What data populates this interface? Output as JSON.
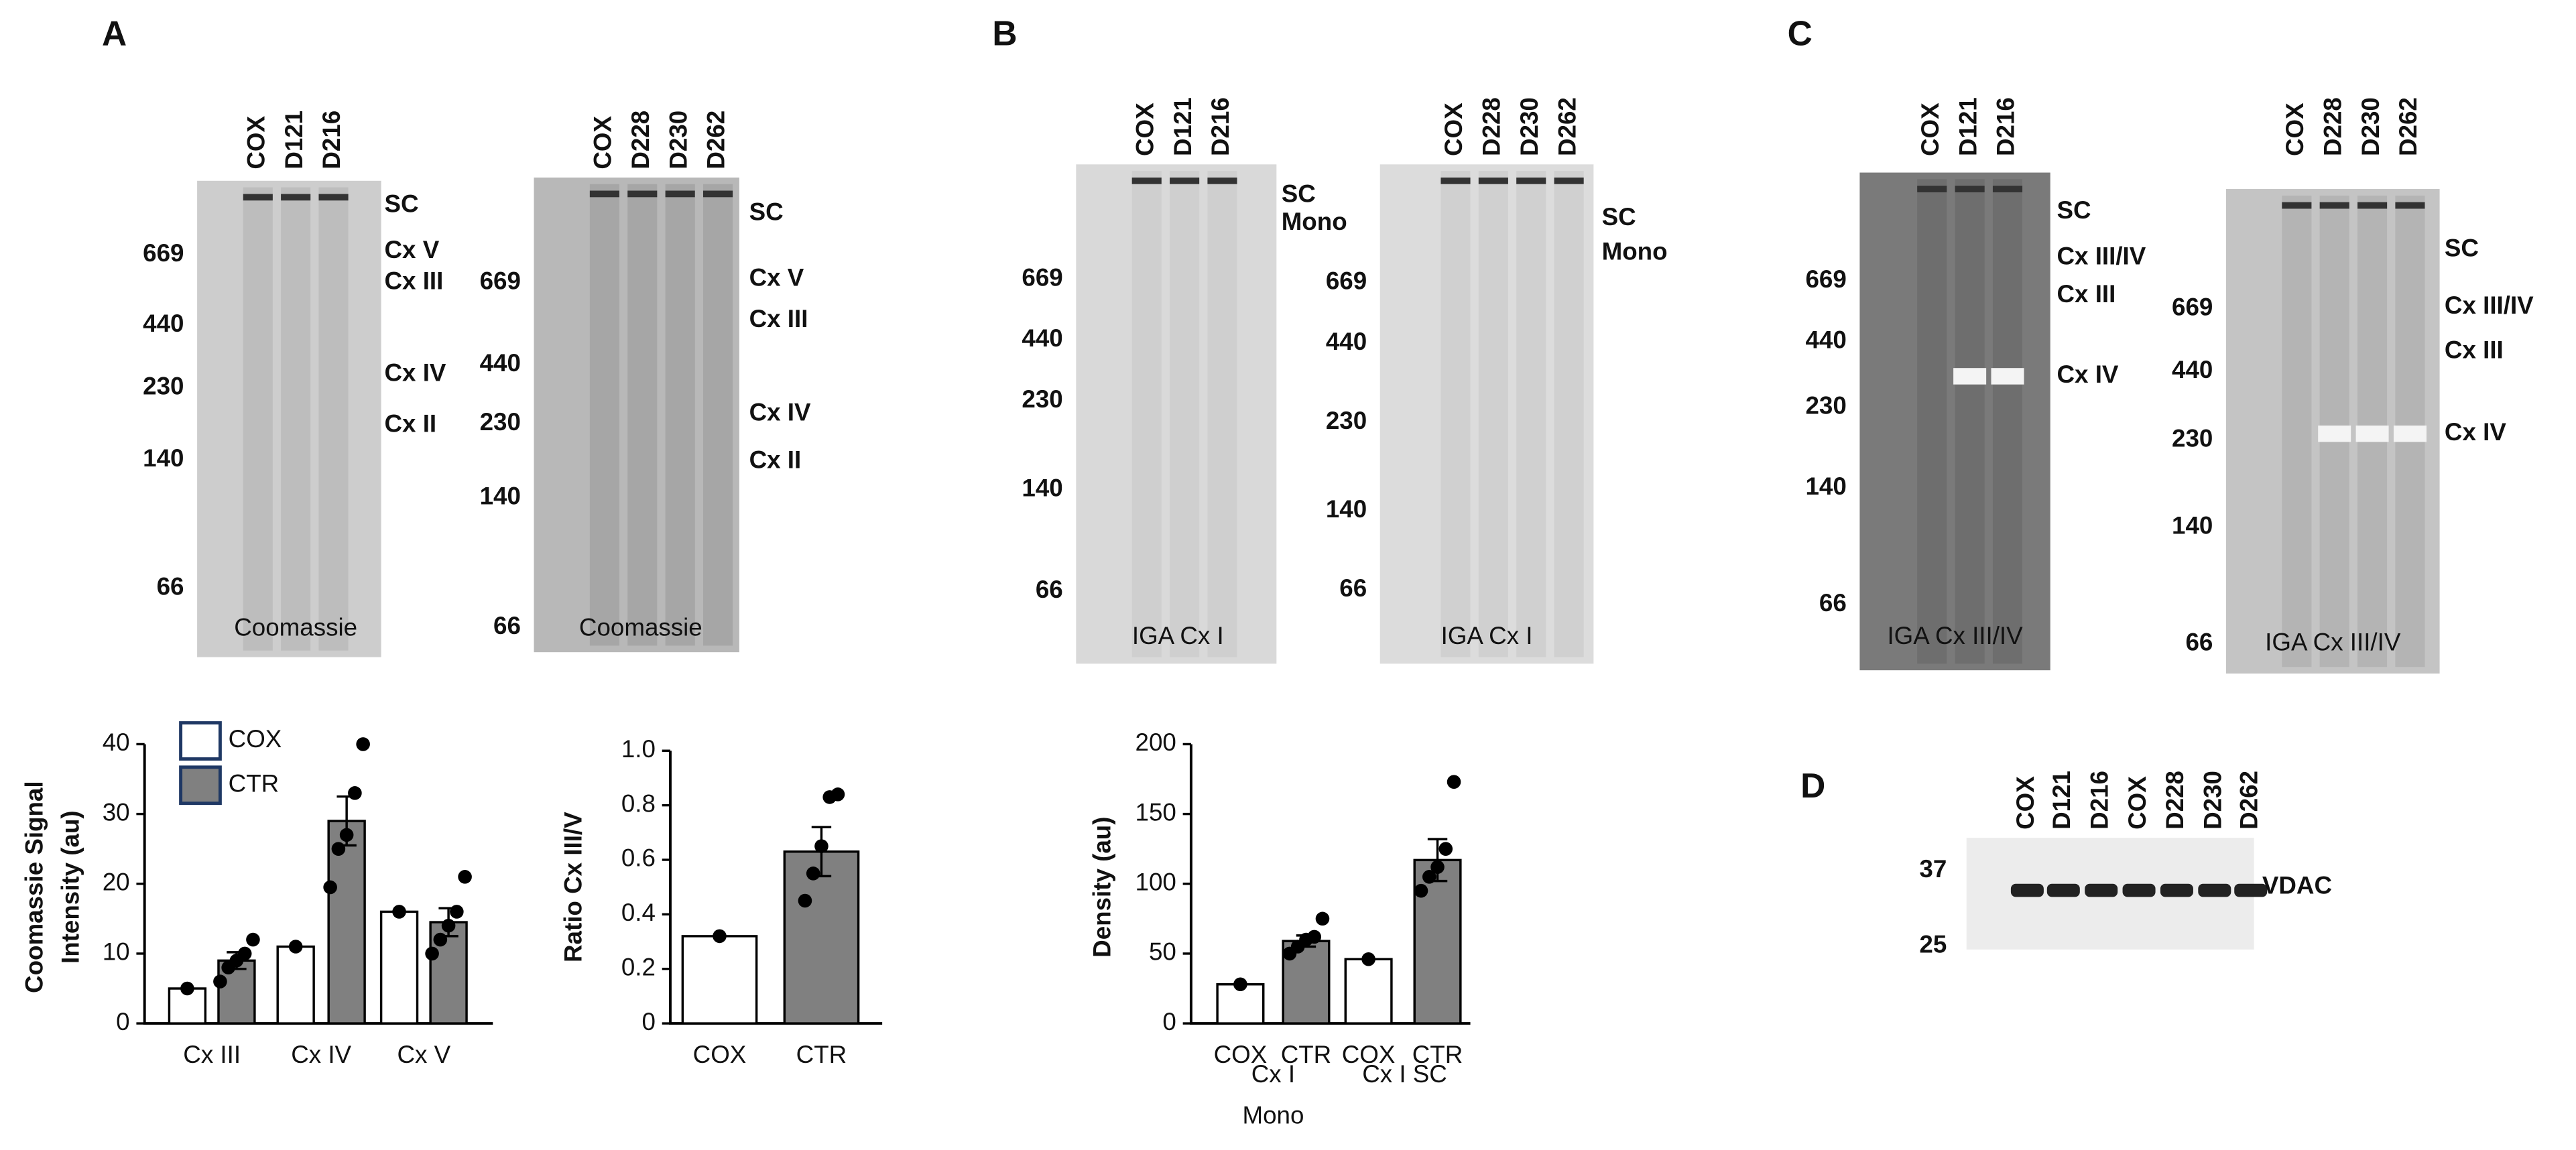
{
  "panel_labels": [
    "A",
    "B",
    "C",
    "D"
  ],
  "gels": [
    {
      "lanes": [
        "COX",
        "D121",
        "D216"
      ],
      "markers": [
        669,
        440,
        230,
        140,
        66
      ],
      "bands": [
        "SC",
        "Cx V",
        "Cx III",
        "Cx IV",
        "Cx II"
      ],
      "stain": "Coomassie"
    },
    {
      "lanes": [
        "COX",
        "D228",
        "D230",
        "D262"
      ],
      "markers": [
        669,
        440,
        230,
        140,
        66
      ],
      "bands": [
        "SC",
        "Cx V",
        "Cx III",
        "Cx IV",
        "Cx II"
      ],
      "stain": "Coomassie"
    },
    {
      "lanes": [
        "COX",
        "D121",
        "D216"
      ],
      "markers": [
        669,
        440,
        230,
        140,
        66
      ],
      "bands": [
        "SC",
        "Mono"
      ],
      "stain": "IGA Cx I"
    },
    {
      "lanes": [
        "COX",
        "D228",
        "D230",
        "D262"
      ],
      "markers": [
        669,
        440,
        230,
        140,
        66
      ],
      "bands": [
        "SC",
        "Mono"
      ],
      "stain": "IGA Cx I"
    },
    {
      "lanes": [
        "COX",
        "D121",
        "D216"
      ],
      "markers": [
        669,
        440,
        230,
        140,
        66
      ],
      "bands": [
        "SC",
        "Cx III/IV",
        "Cx III",
        "Cx IV"
      ],
      "stain": "IGA Cx III/IV"
    },
    {
      "lanes": [
        "COX",
        "D228",
        "D230",
        "D262"
      ],
      "markers": [
        669,
        440,
        230,
        140,
        66
      ],
      "bands": [
        "SC",
        "Cx III/IV",
        "Cx III",
        "Cx IV"
      ],
      "stain": "IGA Cx III/IV"
    }
  ],
  "blot": {
    "lanes": [
      "COX",
      "D121",
      "D216",
      "COX",
      "D228",
      "D230",
      "D262"
    ],
    "markers": [
      37,
      25
    ],
    "band": "VDAC"
  },
  "chart_data": [
    {
      "type": "bar",
      "y_label": [
        "Coomassie Signal",
        "Intensity (au)"
      ],
      "categories": [
        "Cx III",
        "Cx IV",
        "Cx V"
      ],
      "series": [
        {
          "name": "COX",
          "color": "#ffffff",
          "values": [
            5,
            11,
            16
          ],
          "points": [
            [
              5
            ],
            [
              11
            ],
            [
              16
            ]
          ]
        },
        {
          "name": "CTR",
          "color": "#808080",
          "values": [
            9,
            29,
            14.5
          ],
          "errors": [
            1.2,
            3.5,
            2
          ],
          "points": [
            [
              6,
              8,
              9,
              10,
              12
            ],
            [
              19.5,
              25,
              27,
              33,
              40
            ],
            [
              10,
              12,
              14,
              16,
              21
            ]
          ]
        }
      ],
      "ylim": [
        0,
        40
      ],
      "yticks": [
        0,
        10,
        20,
        30,
        40
      ]
    },
    {
      "type": "bar",
      "y_label": [
        "Ratio Cx III/V"
      ],
      "categories": [
        "COX",
        "CTR"
      ],
      "values": [
        0.32,
        0.63
      ],
      "errors": [
        0,
        0.09
      ],
      "colors": [
        "#ffffff",
        "#808080"
      ],
      "points": [
        [
          0.32
        ],
        [
          0.45,
          0.55,
          0.65,
          0.83,
          0.84
        ]
      ],
      "ylim": [
        0,
        1
      ],
      "yticks": [
        0,
        0.2,
        0.4,
        0.6,
        0.8,
        {
          "value": 1,
          "label": "1.0"
        }
      ]
    },
    {
      "type": "bar",
      "y_label": [
        "Density (au)"
      ],
      "categories": [
        "COX",
        "CTR",
        "COX",
        "CTR"
      ],
      "group_labels": [
        [
          "Cx I",
          "Mono"
        ],
        [
          "Cx I SC"
        ]
      ],
      "values": [
        28,
        59,
        46,
        117
      ],
      "errors": [
        0,
        4,
        0,
        15
      ],
      "colors": [
        "#ffffff",
        "#808080",
        "#ffffff",
        "#808080"
      ],
      "points": [
        [
          28
        ],
        [
          50,
          55,
          60,
          62,
          75
        ],
        [
          46
        ],
        [
          95,
          105,
          112,
          125,
          173
        ]
      ],
      "ylim": [
        0,
        200
      ],
      "yticks": [
        0,
        50,
        100,
        150,
        200
      ]
    }
  ]
}
